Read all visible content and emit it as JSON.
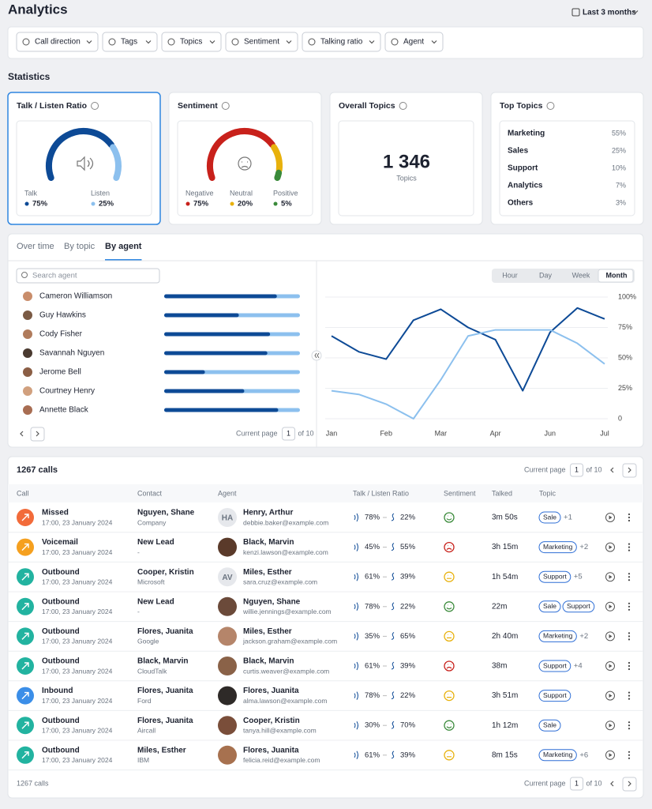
{
  "header": {
    "title": "Analytics",
    "date_range": "Last 3 months"
  },
  "filters": [
    "Call direction",
    "Tags",
    "Topics",
    "Sentiment",
    "Talking ratio",
    "Agent"
  ],
  "statistics": {
    "title": "Statistics",
    "talk_listen": {
      "title": "Talk / Listen Ratio",
      "parts": [
        {
          "name": "Talk",
          "value": 75,
          "label": "75%",
          "color": "#0d4a96"
        },
        {
          "name": "Listen",
          "value": 25,
          "label": "25%",
          "color": "#8cc0ee"
        }
      ]
    },
    "sentiment": {
      "title": "Sentiment",
      "parts": [
        {
          "name": "Negative",
          "value": 75,
          "label": "75%",
          "color": "#c8211b"
        },
        {
          "name": "Neutral",
          "value": 20,
          "label": "20%",
          "color": "#e8b10c"
        },
        {
          "name": "Positive",
          "value": 5,
          "label": "5%",
          "color": "#3a8a3a"
        }
      ]
    },
    "overall_topics": {
      "title": "Overall Topics",
      "value": "1 346",
      "caption": "Topics"
    },
    "top_topics": {
      "title": "Top Topics",
      "items": [
        {
          "name": "Marketing",
          "share": "55%"
        },
        {
          "name": "Sales",
          "share": "25%"
        },
        {
          "name": "Support",
          "share": "10%"
        },
        {
          "name": "Analytics",
          "share": "7%"
        },
        {
          "name": "Others",
          "share": "3%"
        }
      ]
    }
  },
  "breakdown": {
    "tabs": [
      "Over time",
      "By topic",
      "By agent"
    ],
    "active_tab": 2,
    "search_placeholder": "Search agent",
    "talk_color": "#0d4a96",
    "listen_color": "#8cc0ee",
    "agents": [
      {
        "name": "Cameron Williamson",
        "talk": 83
      },
      {
        "name": "Guy Hawkins",
        "talk": 55
      },
      {
        "name": "Cody Fisher",
        "talk": 78
      },
      {
        "name": "Savannah Nguyen",
        "talk": 76
      },
      {
        "name": "Jerome Bell",
        "talk": 30
      },
      {
        "name": "Courtney Henry",
        "talk": 59
      },
      {
        "name": "Annette Black",
        "talk": 84
      }
    ],
    "pagination": {
      "label": "Current page",
      "page": 1,
      "of": "of 10"
    }
  },
  "chart_data": {
    "type": "line",
    "granularity": [
      "Hour",
      "Day",
      "Week",
      "Month"
    ],
    "active_granularity": 3,
    "categories": [
      "Jan",
      null,
      "Feb",
      null,
      "Mar",
      null,
      "Apr",
      null,
      "Jun",
      null,
      "Jul"
    ],
    "series": [
      {
        "color": "#0d4a96",
        "values": [
          68,
          55,
          49,
          81,
          90,
          75,
          65,
          23,
          71,
          91,
          82
        ]
      },
      {
        "color": "#8cc0ee",
        "values": [
          23,
          20,
          12,
          0,
          32,
          68,
          73,
          73,
          73,
          62,
          45
        ]
      }
    ],
    "ylim": [
      0,
      100
    ],
    "yticks": [
      {
        "value": 100,
        "label": "100%"
      },
      {
        "value": 75,
        "label": "75%"
      },
      {
        "value": 50,
        "label": "50%"
      },
      {
        "value": 25,
        "label": "25%"
      },
      0
    ],
    "grid": true
  },
  "calls": {
    "title": "1267 calls",
    "pagination": {
      "label": "Current page",
      "page": 1,
      "of": "of 10"
    },
    "columns": [
      "Call",
      "Contact",
      "Agent",
      "Talk / Listen Ratio",
      "Sentiment",
      "Talked",
      "Topic"
    ],
    "rows": [
      {
        "type": "Missed",
        "color": "#f26b3a",
        "time": "17:00, 23 January 2024",
        "contact": "Nguyen, Shane",
        "company": "Company",
        "agent": "Henry, Arthur",
        "initials": "HA",
        "email": "debbie.baker@example.com",
        "talk": "78%",
        "listen": "22%",
        "sentiment": 2,
        "talked": "3m 50s",
        "tags": [
          "Sale"
        ],
        "more": "+1"
      },
      {
        "type": "Voicemail",
        "color": "#f5a01f",
        "time": "17:00, 23 January 2024",
        "contact": "New Lead",
        "company": "-",
        "agent": "Black, Marvin",
        "email": "kenzi.lawson@example.com",
        "talk": "45%",
        "listen": "55%",
        "sentiment": 0,
        "talked": "3h 15m",
        "tags": [
          "Marketing"
        ],
        "more": "+2"
      },
      {
        "type": "Outbound",
        "color": "#22b3a0",
        "time": "17:00, 23 January 2024",
        "contact": "Cooper, Kristin",
        "company": "Microsoft",
        "agent": "Miles, Esther",
        "initials": "AV",
        "email": "sara.cruz@example.com",
        "talk": "61%",
        "listen": "39%",
        "sentiment": 1,
        "talked": "1h 54m",
        "tags": [
          "Support"
        ],
        "more": "+5"
      },
      {
        "type": "Outbound",
        "color": "#22b3a0",
        "time": "17:00, 23 January 2024",
        "contact": "New Lead",
        "company": "-",
        "agent": "Nguyen, Shane",
        "email": "willie.jennings@example.com",
        "talk": "78%",
        "listen": "22%",
        "sentiment": 2,
        "talked": "22m",
        "tags": [
          "Sale",
          "Support"
        ]
      },
      {
        "type": "Outbound",
        "color": "#22b3a0",
        "time": "17:00, 23 January 2024",
        "contact": "Flores, Juanita",
        "company": "Google",
        "agent": "Miles, Esther",
        "email": "jackson.graham@example.com",
        "talk": "35%",
        "listen": "65%",
        "sentiment": 1,
        "talked": "2h 40m",
        "tags": [
          "Marketing"
        ],
        "more": "+2"
      },
      {
        "type": "Outbound",
        "color": "#22b3a0",
        "time": "17:00, 23 January 2024",
        "contact": "Black, Marvin",
        "company": "CloudTalk",
        "agent": "Black, Marvin",
        "email": "curtis.weaver@example.com",
        "talk": "61%",
        "listen": "39%",
        "sentiment": 0,
        "talked": "38m",
        "tags": [
          "Support"
        ],
        "more": "+4"
      },
      {
        "type": "Inbound",
        "color": "#3b8ee8",
        "time": "17:00, 23 January 2024",
        "contact": "Flores, Juanita",
        "company": "Ford",
        "agent": "Flores, Juanita",
        "email": "alma.lawson@example.com",
        "talk": "78%",
        "listen": "22%",
        "sentiment": 1,
        "talked": "3h 51m",
        "tags": [
          "Support"
        ]
      },
      {
        "type": "Outbound",
        "color": "#22b3a0",
        "time": "17:00, 23 January 2024",
        "contact": "Flores, Juanita",
        "company": "Aircall",
        "agent": "Cooper, Kristin",
        "email": "tanya.hill@example.com",
        "talk": "30%",
        "listen": "70%",
        "sentiment": 2,
        "talked": "1h 12m",
        "tags": [
          "Sale"
        ]
      },
      {
        "type": "Outbound",
        "color": "#22b3a0",
        "time": "17:00, 23 January 2024",
        "contact": "Miles, Esther",
        "company": "IBM",
        "agent": "Flores, Juanita",
        "email": "felicia.reid@example.com",
        "talk": "61%",
        "listen": "39%",
        "sentiment": 1,
        "talked": "8m 15s",
        "tags": [
          "Marketing"
        ],
        "more": "+6"
      }
    ],
    "footer": "1267 calls"
  }
}
